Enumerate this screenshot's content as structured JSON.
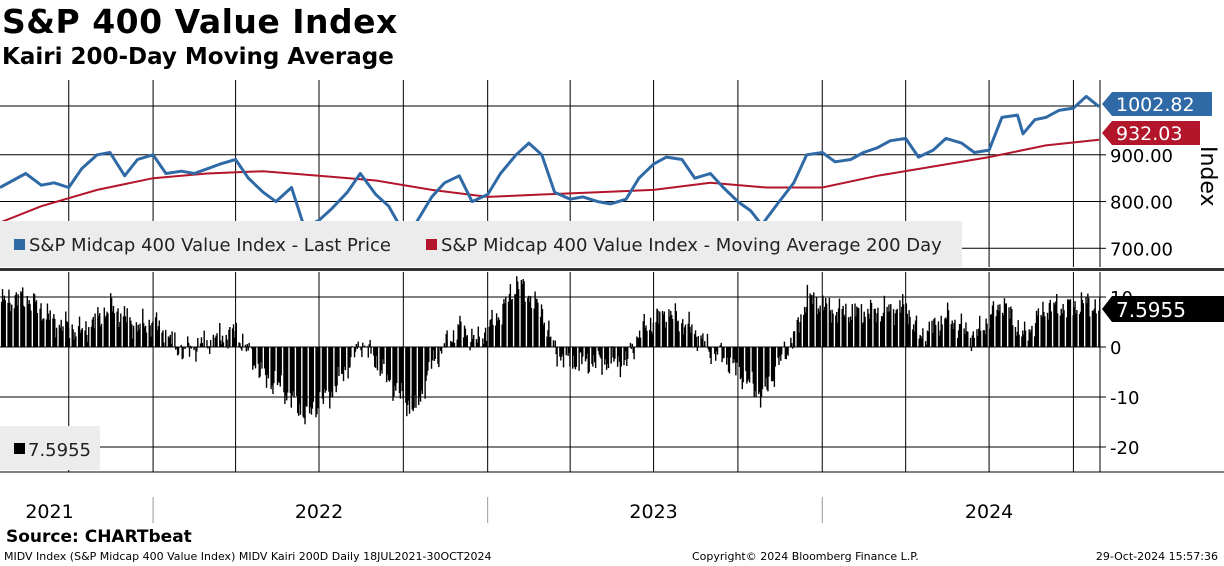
{
  "header": {
    "title": "S&P 400 Value Index",
    "subtitle": "Kairi 200-Day Moving Average"
  },
  "colors": {
    "price": "#2f6aa6",
    "ma": "#b3152b",
    "kairi": "#000000",
    "grid": "#000000",
    "legend_bg": "#ececec"
  },
  "chart_data": [
    {
      "type": "line",
      "panel": "top",
      "ylabel": "Index",
      "ylim": [
        660,
        1060
      ],
      "xlim": [
        "2021-07-18",
        "2024-10-30"
      ],
      "yticks": [
        700,
        800,
        900
      ],
      "ytick_labels": [
        "700.00",
        "800.00",
        "900.00"
      ],
      "legend": [
        {
          "name": "S&P Midcap 400 Value Index - Last Price",
          "color": "#2f6aa6"
        },
        {
          "name": "S&P Midcap 400 Value Index - Moving Average 200 Day",
          "color": "#b3152b"
        }
      ],
      "series": [
        {
          "name": "S&P Midcap 400 Value Index - Last Price",
          "color": "#2f6aa6",
          "last_label": "1002.82",
          "points": [
            [
              "2021-07-18",
              830
            ],
            [
              "2021-08-01",
              845
            ],
            [
              "2021-08-15",
              860
            ],
            [
              "2021-09-01",
              835
            ],
            [
              "2021-09-15",
              840
            ],
            [
              "2021-10-01",
              830
            ],
            [
              "2021-10-15",
              870
            ],
            [
              "2021-11-01",
              900
            ],
            [
              "2021-11-15",
              905
            ],
            [
              "2021-12-01",
              855
            ],
            [
              "2021-12-15",
              890
            ],
            [
              "2022-01-01",
              900
            ],
            [
              "2022-01-15",
              860
            ],
            [
              "2022-02-01",
              865
            ],
            [
              "2022-02-15",
              860
            ],
            [
              "2022-03-01",
              870
            ],
            [
              "2022-03-15",
              880
            ],
            [
              "2022-04-01",
              890
            ],
            [
              "2022-04-15",
              850
            ],
            [
              "2022-05-01",
              820
            ],
            [
              "2022-05-15",
              800
            ],
            [
              "2022-06-01",
              830
            ],
            [
              "2022-06-15",
              745
            ],
            [
              "2022-07-01",
              760
            ],
            [
              "2022-07-15",
              785
            ],
            [
              "2022-08-01",
              820
            ],
            [
              "2022-08-15",
              860
            ],
            [
              "2022-09-01",
              815
            ],
            [
              "2022-09-15",
              790
            ],
            [
              "2022-10-01",
              735
            ],
            [
              "2022-10-15",
              755
            ],
            [
              "2022-11-01",
              810
            ],
            [
              "2022-11-15",
              840
            ],
            [
              "2022-12-01",
              855
            ],
            [
              "2022-12-15",
              800
            ],
            [
              "2023-01-01",
              815
            ],
            [
              "2023-01-15",
              860
            ],
            [
              "2023-02-01",
              900
            ],
            [
              "2023-02-15",
              925
            ],
            [
              "2023-03-01",
              900
            ],
            [
              "2023-03-15",
              820
            ],
            [
              "2023-04-01",
              805
            ],
            [
              "2023-04-15",
              810
            ],
            [
              "2023-05-01",
              800
            ],
            [
              "2023-05-15",
              795
            ],
            [
              "2023-06-01",
              805
            ],
            [
              "2023-06-15",
              850
            ],
            [
              "2023-07-01",
              880
            ],
            [
              "2023-07-15",
              895
            ],
            [
              "2023-08-01",
              890
            ],
            [
              "2023-08-15",
              850
            ],
            [
              "2023-09-01",
              860
            ],
            [
              "2023-09-15",
              830
            ],
            [
              "2023-10-01",
              800
            ],
            [
              "2023-10-15",
              780
            ],
            [
              "2023-10-27",
              750
            ],
            [
              "2023-11-15",
              800
            ],
            [
              "2023-12-01",
              840
            ],
            [
              "2023-12-15",
              900
            ],
            [
              "2024-01-01",
              905
            ],
            [
              "2024-01-15",
              885
            ],
            [
              "2024-02-01",
              890
            ],
            [
              "2024-02-15",
              905
            ],
            [
              "2024-03-01",
              915
            ],
            [
              "2024-03-15",
              930
            ],
            [
              "2024-04-01",
              935
            ],
            [
              "2024-04-15",
              895
            ],
            [
              "2024-05-01",
              910
            ],
            [
              "2024-05-15",
              935
            ],
            [
              "2024-06-01",
              925
            ],
            [
              "2024-06-15",
              905
            ],
            [
              "2024-07-01",
              910
            ],
            [
              "2024-07-15",
              980
            ],
            [
              "2024-08-01",
              985
            ],
            [
              "2024-08-07",
              945
            ],
            [
              "2024-08-20",
              975
            ],
            [
              "2024-09-01",
              980
            ],
            [
              "2024-09-15",
              995
            ],
            [
              "2024-10-01",
              1000
            ],
            [
              "2024-10-15",
              1025
            ],
            [
              "2024-10-29",
              1002.82
            ]
          ]
        },
        {
          "name": "S&P Midcap 400 Value Index - Moving Average 200 Day",
          "color": "#b3152b",
          "last_label": "932.03",
          "points": [
            [
              "2021-07-18",
              755
            ],
            [
              "2021-09-01",
              790
            ],
            [
              "2021-11-01",
              825
            ],
            [
              "2022-01-01",
              850
            ],
            [
              "2022-03-01",
              860
            ],
            [
              "2022-05-01",
              865
            ],
            [
              "2022-07-01",
              855
            ],
            [
              "2022-09-01",
              845
            ],
            [
              "2022-11-01",
              825
            ],
            [
              "2023-01-01",
              810
            ],
            [
              "2023-03-01",
              815
            ],
            [
              "2023-05-01",
              820
            ],
            [
              "2023-07-01",
              825
            ],
            [
              "2023-09-01",
              840
            ],
            [
              "2023-11-01",
              830
            ],
            [
              "2024-01-01",
              830
            ],
            [
              "2024-03-01",
              855
            ],
            [
              "2024-05-01",
              875
            ],
            [
              "2024-07-01",
              895
            ],
            [
              "2024-09-01",
              920
            ],
            [
              "2024-10-29",
              932.03
            ]
          ]
        }
      ]
    },
    {
      "type": "bar",
      "panel": "bottom",
      "ylim": [
        -25,
        15
      ],
      "yticks": [
        -20,
        -10,
        0,
        10
      ],
      "ytick_labels": [
        "-20",
        "-10",
        "0",
        "10"
      ],
      "legend": [
        {
          "name": "7.5955",
          "color": "#000000"
        }
      ],
      "series": [
        {
          "name": "Kairi 200D",
          "color": "#000000",
          "last_label": "7.5955",
          "points": [
            [
              "2021-07-18",
              9
            ],
            [
              "2021-08-15",
              10
            ],
            [
              "2021-09-15",
              5
            ],
            [
              "2021-10-15",
              3
            ],
            [
              "2021-11-15",
              8
            ],
            [
              "2021-12-15",
              4
            ],
            [
              "2022-01-01",
              5
            ],
            [
              "2022-02-01",
              -1
            ],
            [
              "2022-03-01",
              1
            ],
            [
              "2022-04-01",
              3
            ],
            [
              "2022-05-01",
              -6
            ],
            [
              "2022-05-20",
              -8
            ],
            [
              "2022-06-17",
              -14
            ],
            [
              "2022-07-01",
              -11
            ],
            [
              "2022-07-15",
              -9
            ],
            [
              "2022-08-16",
              1
            ],
            [
              "2022-09-01",
              -3
            ],
            [
              "2022-09-15",
              -7
            ],
            [
              "2022-10-13",
              -13
            ],
            [
              "2022-11-01",
              -3
            ],
            [
              "2022-12-01",
              4
            ],
            [
              "2022-12-20",
              1
            ],
            [
              "2023-01-15",
              7
            ],
            [
              "2023-02-02",
              13
            ],
            [
              "2023-03-01",
              7
            ],
            [
              "2023-03-15",
              -1
            ],
            [
              "2023-04-01",
              -3
            ],
            [
              "2023-05-01",
              -3
            ],
            [
              "2023-06-01",
              -3
            ],
            [
              "2023-06-15",
              3
            ],
            [
              "2023-07-15",
              7
            ],
            [
              "2023-08-15",
              3
            ],
            [
              "2023-09-01",
              -1
            ],
            [
              "2023-09-15",
              -2
            ],
            [
              "2023-10-01",
              -5
            ],
            [
              "2023-10-27",
              -10
            ],
            [
              "2023-11-15",
              -3
            ],
            [
              "2023-12-01",
              2
            ],
            [
              "2023-12-15",
              10
            ],
            [
              "2024-01-15",
              7
            ],
            [
              "2024-02-01",
              7
            ],
            [
              "2024-03-01",
              7
            ],
            [
              "2024-04-01",
              8
            ],
            [
              "2024-04-15",
              2
            ],
            [
              "2024-05-15",
              6
            ],
            [
              "2024-06-15",
              2
            ],
            [
              "2024-07-15",
              9
            ],
            [
              "2024-08-07",
              2
            ],
            [
              "2024-09-01",
              8
            ],
            [
              "2024-10-01",
              8
            ],
            [
              "2024-10-15",
              9
            ],
            [
              "2024-10-29",
              7.5955
            ]
          ]
        }
      ]
    }
  ],
  "x_axis": {
    "labels": [
      {
        "text": "2021",
        "date": "2021-09-10"
      },
      {
        "text": "2022",
        "date": "2022-07-01"
      },
      {
        "text": "2023",
        "date": "2023-07-01"
      },
      {
        "text": "2024",
        "date": "2024-07-01"
      }
    ],
    "year_dividers": [
      "2022-01-01",
      "2023-01-01",
      "2024-01-01"
    ],
    "gridlines": [
      "2021-10-01",
      "2022-01-01",
      "2022-04-01",
      "2022-07-01",
      "2022-10-01",
      "2023-01-01",
      "2023-04-01",
      "2023-07-01",
      "2023-10-01",
      "2024-01-01",
      "2024-04-01",
      "2024-07-01",
      "2024-10-01"
    ]
  },
  "footer": {
    "source": "Source: CHARTbeat",
    "left": "MIDV Index (S&P Midcap 400 Value Index) MIDV Kairi 200D  Daily 18JUL2021-30OCT2024",
    "center": "Copyright© 2024 Bloomberg Finance L.P.",
    "right": "29-Oct-2024 15:57:36"
  }
}
